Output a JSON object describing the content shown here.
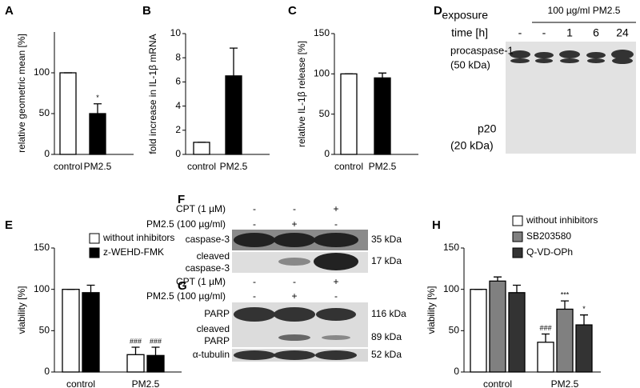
{
  "panel_labels": [
    "A",
    "B",
    "C",
    "D",
    "E",
    "F",
    "G",
    "H"
  ],
  "chart_data": [
    {
      "type": "bar",
      "panel": "A",
      "ylabel": "relative geometric mean [%]",
      "categories": [
        "control",
        "PM2.5"
      ],
      "values": [
        100,
        50
      ],
      "errors": [
        0,
        12
      ],
      "colors": [
        "#ffffff",
        "#000000"
      ],
      "ylim": [
        0,
        150
      ],
      "yticks": [
        0,
        50,
        100
      ],
      "annotations": [
        {
          "text": "*",
          "category": 1
        }
      ]
    },
    {
      "type": "bar",
      "panel": "B",
      "ylabel": "fold increase in IL-1β mRNA",
      "categories": [
        "control",
        "PM2.5"
      ],
      "values": [
        1,
        6.5
      ],
      "errors": [
        0,
        2.3
      ],
      "colors": [
        "#ffffff",
        "#000000"
      ],
      "ylim": [
        0,
        10
      ],
      "yticks": [
        0,
        2,
        4,
        6,
        8,
        10
      ]
    },
    {
      "type": "bar",
      "panel": "C",
      "ylabel": "relative IL-1β release [%]",
      "categories": [
        "control",
        "PM2.5"
      ],
      "values": [
        100,
        95
      ],
      "errors": [
        0,
        6
      ],
      "colors": [
        "#ffffff",
        "#000000"
      ],
      "ylim": [
        0,
        150
      ],
      "yticks": [
        0,
        50,
        100,
        150
      ]
    },
    {
      "type": "grouped-bar",
      "panel": "E",
      "ylabel": "viability [%]",
      "categories": [
        "control",
        "PM2.5"
      ],
      "ylim": [
        0,
        150
      ],
      "yticks": [
        0,
        50,
        100,
        150
      ],
      "series": [
        {
          "name": "without inhibitors",
          "color": "#ffffff",
          "values": [
            100,
            21
          ],
          "errors": [
            0,
            9
          ]
        },
        {
          "name": "z-WEHD-FMK",
          "color": "#000000",
          "values": [
            96,
            20
          ],
          "errors": [
            9,
            10
          ]
        }
      ],
      "annotations": [
        {
          "text": "###",
          "category": 1,
          "series": 0
        },
        {
          "text": "###",
          "category": 1,
          "series": 1
        }
      ]
    },
    {
      "type": "grouped-bar",
      "panel": "H",
      "ylabel": "viability [%]",
      "categories": [
        "control",
        "PM2.5"
      ],
      "ylim": [
        0,
        150
      ],
      "yticks": [
        0,
        50,
        100,
        150
      ],
      "series": [
        {
          "name": "without inhibitors",
          "color": "#ffffff",
          "values": [
            100,
            36
          ],
          "errors": [
            0,
            10
          ]
        },
        {
          "name": "SB203580",
          "color": "#808080",
          "values": [
            110,
            76
          ],
          "errors": [
            5,
            10
          ]
        },
        {
          "name": "Q-VD-OPh",
          "color": "#333333",
          "values": [
            96,
            57
          ],
          "errors": [
            9,
            12
          ]
        }
      ],
      "annotations": [
        {
          "text": "###",
          "category": 1,
          "series": 0
        },
        {
          "text": "***",
          "category": 1,
          "series": 1
        },
        {
          "text": "*",
          "category": 1,
          "series": 2
        }
      ]
    }
  ],
  "blots": {
    "D": {
      "header": [
        "exposure",
        "time [h]"
      ],
      "treatment": "100 µg/ml PM2.5",
      "lanes": [
        "-",
        "-",
        "1",
        "6",
        "24"
      ],
      "bands": [
        [
          "procaspase-1",
          "(50 kDa)"
        ],
        [
          "p20",
          "(20 kDa)"
        ]
      ]
    },
    "F": {
      "rows": [
        {
          "label": "CPT (1 µM)",
          "lanes": [
            "-",
            "-",
            "+"
          ]
        },
        {
          "label": "PM2.5 (100 µg/ml)",
          "lanes": [
            "-",
            "+",
            "-"
          ]
        }
      ],
      "bands": [
        {
          "label": [
            "caspase-3"
          ],
          "size": "35 kDa"
        },
        {
          "label": [
            "cleaved",
            "caspase-3"
          ],
          "size": "17 kDa"
        }
      ]
    },
    "G": {
      "rows": [
        {
          "label": "CPT (1 µM)",
          "lanes": [
            "-",
            "-",
            "+"
          ]
        },
        {
          "label": "PM2.5 (100 µg/ml)",
          "lanes": [
            "-",
            "+",
            "-"
          ]
        }
      ],
      "bands": [
        {
          "label": [
            "PARP"
          ],
          "size": "116 kDa"
        },
        {
          "label": [
            "cleaved",
            "PARP"
          ],
          "size": "89 kDa"
        },
        {
          "label": [
            "α-tubulin"
          ],
          "size": "52 kDa"
        }
      ]
    }
  }
}
